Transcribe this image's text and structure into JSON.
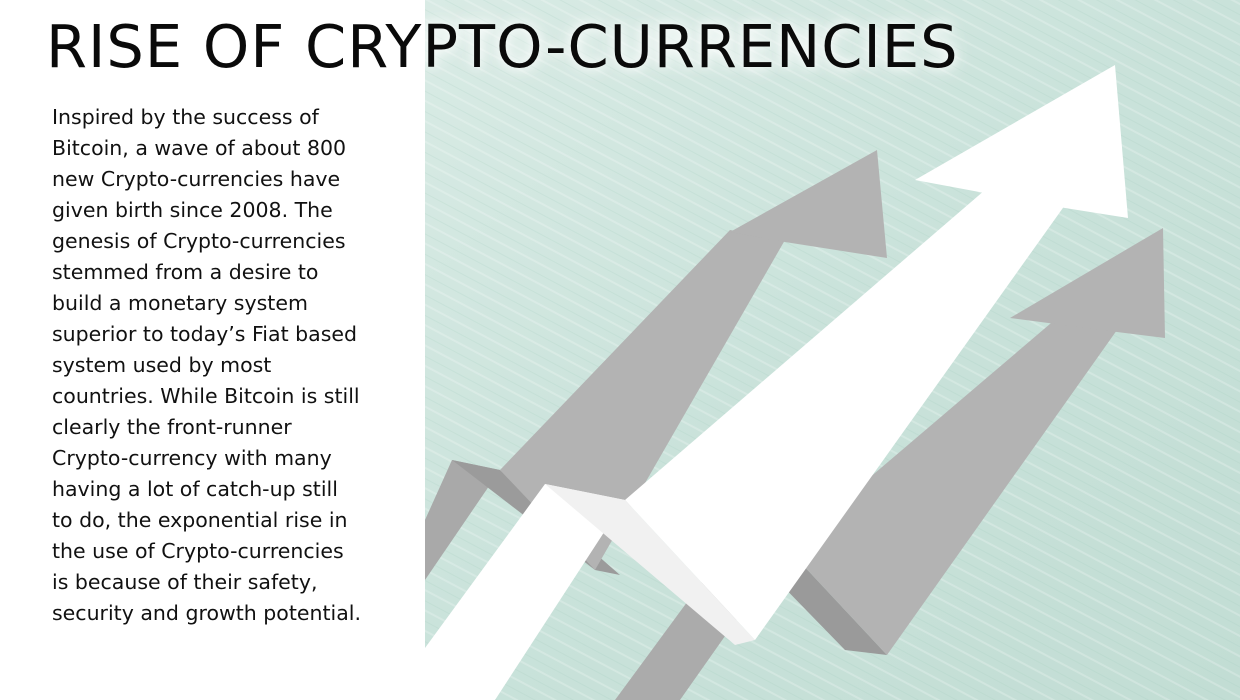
{
  "slide": {
    "title": "RISE OF CRYPTO-CURRENCIES",
    "body": "Inspired by the success of\nBitcoin, a wave of about 800\nnew Crypto-currencies have\ngiven birth since 2008. The\ngenesis of Crypto-currencies\nstemmed from a desire to\nbuild a monetary system\nsuperior to today’s Fiat based\nsystem used by most\ncountries. While Bitcoin is still\nclearly the front-runner\nCrypto-currency with many\nhaving a lot of catch-up still\nto do, the exponential rise in\nthe use of Crypto-currencies\nis because of their safety,\nsecurity and growth potential."
  },
  "background": {
    "image": "rising-arrows-graphic",
    "panel_color": "#cfe5de",
    "arrow_gray": "#b0b0b0",
    "arrow_white": "#ffffff"
  }
}
